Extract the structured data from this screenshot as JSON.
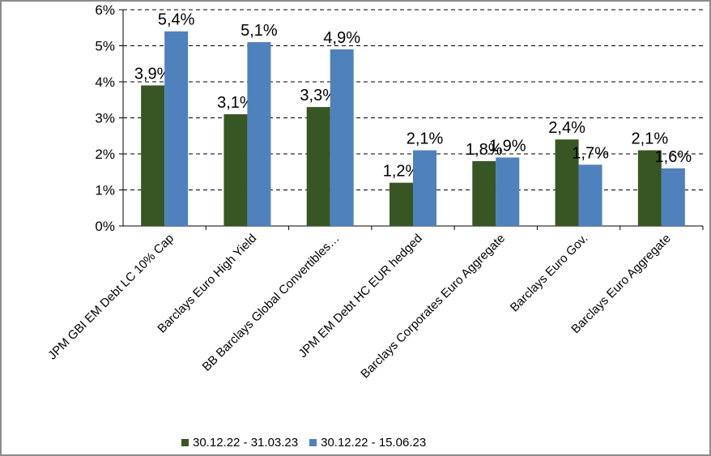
{
  "chart_data": {
    "type": "bar",
    "categories": [
      "JPM GBI EM Debt LC 10% Cap",
      "Barclays Euro High Yield",
      "BB Barclays Global Convertibles…",
      "JPM EM Debt HC EUR hedged",
      "Barclays Corporates Euro Aggregate",
      "Barclays Euro Gov.",
      "Barclays Euro Aggregate"
    ],
    "series": [
      {
        "name": "30.12.22 - 31.03.23",
        "color": "#375623",
        "values": [
          3.9,
          3.1,
          3.3,
          1.2,
          1.8,
          2.4,
          2.1
        ],
        "labels": [
          "3,9%",
          "3,1%",
          "3,3%",
          "1,2%",
          "1,8%",
          "2,4%",
          "2,1%"
        ]
      },
      {
        "name": "30.12.22 - 15.06.23",
        "color": "#4f81bd",
        "values": [
          5.4,
          5.1,
          4.9,
          2.1,
          1.9,
          1.7,
          1.6
        ],
        "labels": [
          "5,4%",
          "5,1%",
          "4,9%",
          "2,1%",
          "1,9%",
          "1,7%",
          "1,6%"
        ]
      }
    ],
    "ylim": [
      0,
      6
    ],
    "yticks": [
      "0%",
      "1%",
      "2%",
      "3%",
      "4%",
      "5%",
      "6%"
    ],
    "grid": true,
    "legend": "bottom"
  }
}
